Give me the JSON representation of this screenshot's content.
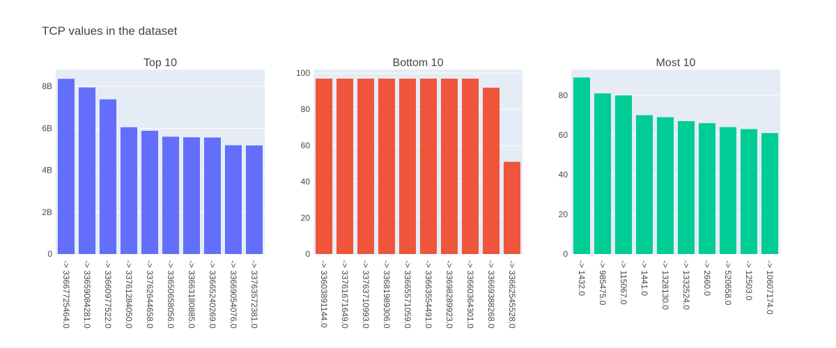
{
  "title": "TCP values in the dataset",
  "chart_data": [
    {
      "type": "bar",
      "title": "Top 10",
      "color": "#636efa",
      "ylim": [
        0,
        8800000000
      ],
      "yticks": [
        0,
        2000000000,
        4000000000,
        6000000000,
        8000000000
      ],
      "ytick_labels": [
        "0",
        "2B",
        "4B",
        "6B",
        "8B"
      ],
      "categories": [
        "-> 33667725464.0",
        "-> 33659084281.0",
        "-> 33660977522.0",
        "-> 33761284050.0",
        "-> 33762644658.0",
        "-> 33650658056.0",
        "-> 33663180885.0",
        "-> 33665240269.0",
        "-> 33669054076.0",
        "-> 33763572381.0"
      ],
      "values": [
        8360000000,
        7950000000,
        7380000000,
        6050000000,
        5880000000,
        5600000000,
        5570000000,
        5560000000,
        5190000000,
        5180000000
      ]
    },
    {
      "type": "bar",
      "title": "Bottom 10",
      "color": "#ef553b",
      "ylim": [
        0,
        102
      ],
      "yticks": [
        0,
        20,
        40,
        60,
        80,
        100
      ],
      "ytick_labels": [
        "0",
        "20",
        "40",
        "60",
        "80",
        "100"
      ],
      "categories": [
        "-> 33603891144.0",
        "-> 33761671649.0",
        "-> 33763710993.0",
        "-> 33681989306.0",
        "-> 33665571059.0",
        "-> 33663554491.0",
        "-> 33698289923.0",
        "-> 33660364301.0",
        "-> 33669388268.0",
        "-> 33662545528.0"
      ],
      "values": [
        97,
        97,
        97,
        97,
        97,
        97,
        97,
        97,
        92,
        51
      ]
    },
    {
      "type": "bar",
      "title": "Most 10",
      "color": "#00cc96",
      "ylim": [
        0,
        93
      ],
      "yticks": [
        0,
        20,
        40,
        60,
        80
      ],
      "ytick_labels": [
        "0",
        "20",
        "40",
        "60",
        "80"
      ],
      "categories": [
        "-> 1432.0",
        "-> 985475.0",
        "-> 115067.0",
        "-> 1441.0",
        "-> 1328130.0",
        "-> 1332524.0",
        "-> 2660.0",
        "-> 520658.0",
        "-> 12503.0",
        "-> 10607174.0"
      ],
      "values": [
        89,
        81,
        80,
        70,
        69,
        67,
        66,
        64,
        63,
        61
      ]
    }
  ]
}
